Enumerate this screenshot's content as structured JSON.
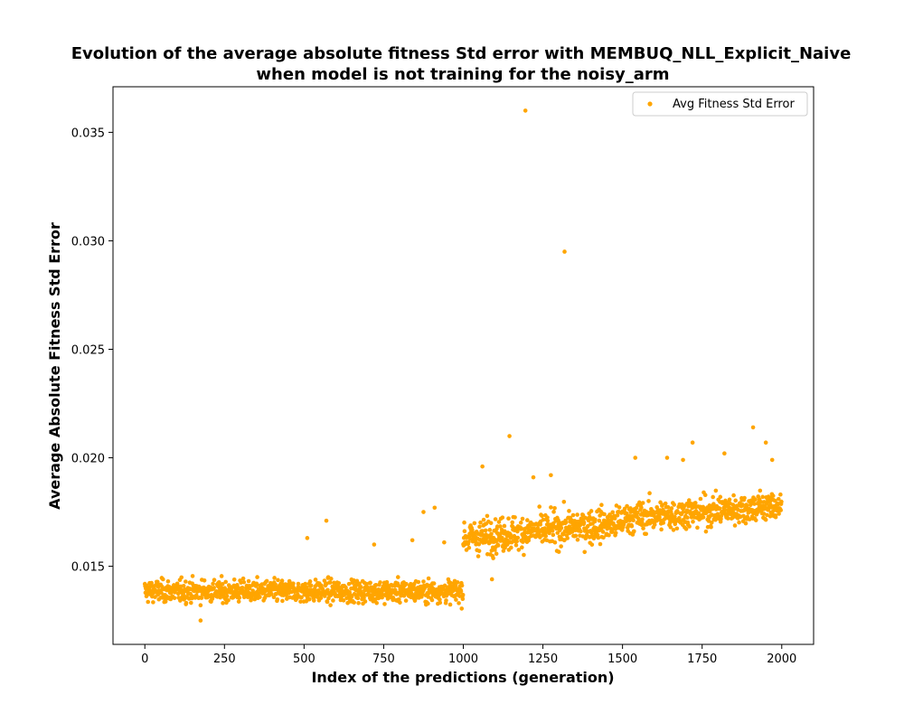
{
  "chart_data": {
    "type": "scatter",
    "title": "Evolution of the average absolute fitness Std error with MEMBUQ_NLL_Explicit_Naive",
    "subtitle": "when model is not training for the noisy_arm",
    "xlabel": "Index of the predictions (generation)",
    "ylabel": "Average Absolute Fitness Std Error",
    "xlim": [
      -100,
      2100
    ],
    "ylim": [
      0.0114,
      0.0371
    ],
    "x_ticks": [
      0,
      250,
      500,
      750,
      1000,
      1250,
      1500,
      1750,
      2000
    ],
    "x_tick_labels": [
      "0",
      "250",
      "500",
      "750",
      "1000",
      "1250",
      "1500",
      "1750",
      "2000"
    ],
    "y_ticks": [
      0.015,
      0.02,
      0.025,
      0.03,
      0.035
    ],
    "y_tick_labels": [
      "0.015",
      "0.020",
      "0.025",
      "0.030",
      "0.035"
    ],
    "grid": false,
    "legend_position": "top-right",
    "color": "#FFA500",
    "series": [
      {
        "name": "Avg Fitness Std Error",
        "segments": [
          {
            "x_start": 0,
            "x_end": 999,
            "step": 1,
            "mean": 0.01385,
            "spread": 0.00065
          },
          {
            "x_start": 1000,
            "x_end": 1499,
            "step": 1,
            "mean_start": 0.0163,
            "mean_end": 0.017,
            "spread": 0.001
          },
          {
            "x_start": 1500,
            "x_end": 1999,
            "step": 1,
            "mean_start": 0.0172,
            "mean_end": 0.0178,
            "spread": 0.0009
          }
        ],
        "notable_points": [
          {
            "x": 1195,
            "y": 0.036
          },
          {
            "x": 1318,
            "y": 0.0295
          },
          {
            "x": 1145,
            "y": 0.021
          },
          {
            "x": 1910,
            "y": 0.0214
          },
          {
            "x": 1950,
            "y": 0.0207
          },
          {
            "x": 1720,
            "y": 0.0207
          },
          {
            "x": 1820,
            "y": 0.0202
          },
          {
            "x": 1540,
            "y": 0.02
          },
          {
            "x": 1060,
            "y": 0.0196
          },
          {
            "x": 1275,
            "y": 0.0192
          },
          {
            "x": 1220,
            "y": 0.0191
          },
          {
            "x": 1640,
            "y": 0.02
          },
          {
            "x": 1690,
            "y": 0.0199
          },
          {
            "x": 1970,
            "y": 0.0199
          },
          {
            "x": 570,
            "y": 0.0171
          },
          {
            "x": 510,
            "y": 0.0163
          },
          {
            "x": 875,
            "y": 0.0175
          },
          {
            "x": 910,
            "y": 0.0177
          },
          {
            "x": 840,
            "y": 0.0162
          },
          {
            "x": 940,
            "y": 0.0161
          },
          {
            "x": 720,
            "y": 0.016
          },
          {
            "x": 175,
            "y": 0.0125
          },
          {
            "x": 1090,
            "y": 0.0144
          }
        ]
      }
    ]
  }
}
